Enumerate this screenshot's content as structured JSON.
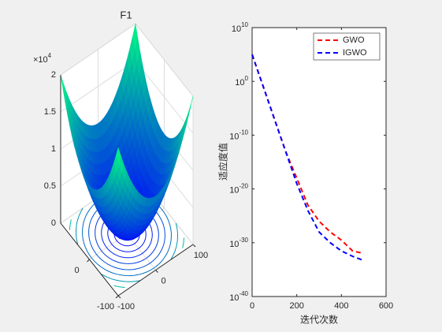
{
  "chart_data": [
    {
      "type": "surface",
      "title": "F1",
      "colormap": "winter",
      "xlim": [
        -100,
        100
      ],
      "xticks": [
        -100,
        0,
        100
      ],
      "ylim": [
        -100,
        100
      ],
      "yticks": [
        -100,
        0
      ],
      "zlim": [
        0,
        20000
      ],
      "zticks": [
        0,
        {
          "value": 5000,
          "label": "0.5"
        },
        {
          "value": 10000,
          "label": "1"
        },
        {
          "value": 15000,
          "label": "1.5"
        },
        {
          "value": 20000,
          "label": "2"
        }
      ],
      "z_multiplier": "×10^4"
    },
    {
      "type": "line",
      "log_y": true,
      "xlabel": "迭代次数",
      "ylabel": "适应度值",
      "legend": "upper right",
      "xlim": [
        0,
        600
      ],
      "xticks": [
        0,
        200,
        400,
        600
      ],
      "ylim": [
        1e-40,
        10000000000.0
      ],
      "yticks": [
        {
          "value": 1e-40,
          "label": "10^-40"
        },
        {
          "value": 1e-30,
          "label": "10^-30"
        },
        {
          "value": 1e-20,
          "label": "10^-20"
        },
        {
          "value": 1e-10,
          "label": "10^-10"
        },
        {
          "value": 1,
          "label": "10^0"
        },
        {
          "value": 10000000000.0,
          "label": "10^10"
        }
      ],
      "x": [
        0,
        50,
        100,
        150,
        200,
        250,
        300,
        350,
        400,
        450,
        500
      ],
      "series": [
        {
          "name": "GWO",
          "color": "#ff0000",
          "values": [
            100000.0,
            0.1,
            1e-07,
            1e-13,
            1e-18,
            1e-23,
            1e-26,
            1e-28,
            3e-30,
            3e-32,
            1e-32
          ]
        },
        {
          "name": "IGWO",
          "color": "#0000ff",
          "values": [
            100000.0,
            0.1,
            1e-07,
            1e-13,
            1e-19,
            1e-24,
            1e-28,
            1e-30,
            3e-32,
            3e-33,
            5e-34
          ]
        }
      ]
    }
  ]
}
